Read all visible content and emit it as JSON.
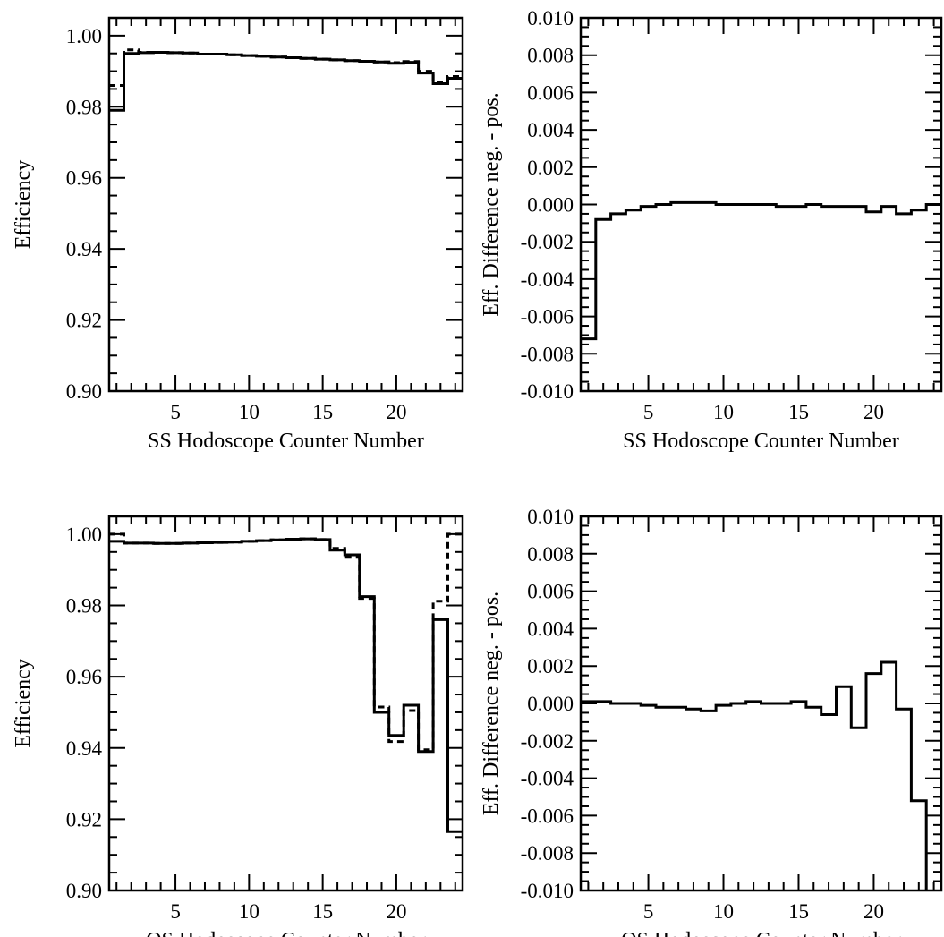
{
  "chart_data": [
    {
      "type": "line",
      "step": true,
      "xlabel": "SS Hodoscope Counter Number",
      "ylabel": "Efficiency",
      "xlim": [
        0.5,
        24.5
      ],
      "ylim": [
        0.9,
        1.005
      ],
      "x_ticks": [
        5,
        10,
        15,
        20
      ],
      "x_tick_labels": [
        "5",
        "10",
        "15",
        "20"
      ],
      "y_ticks": [
        0.9,
        0.92,
        0.94,
        0.96,
        0.98,
        1.0
      ],
      "y_tick_labels": [
        "0.90",
        "0.92",
        "0.94",
        "0.96",
        "0.98",
        "1.00"
      ],
      "x": [
        1,
        2,
        3,
        4,
        5,
        6,
        7,
        8,
        9,
        10,
        11,
        12,
        13,
        14,
        15,
        16,
        17,
        18,
        19,
        20,
        21,
        22,
        23,
        24
      ],
      "series": [
        {
          "style": "solid",
          "values": [
            0.979,
            0.995,
            0.9952,
            0.9953,
            0.9952,
            0.9951,
            0.9948,
            0.9948,
            0.9946,
            0.9944,
            0.9942,
            0.994,
            0.9938,
            0.9936,
            0.9934,
            0.9932,
            0.993,
            0.9928,
            0.9926,
            0.9922,
            0.9925,
            0.9895,
            0.9865,
            0.988
          ]
        },
        {
          "style": "dashed",
          "values": [
            0.986,
            0.996,
            0.9953,
            0.9953,
            0.9952,
            0.9951,
            0.9948,
            0.9948,
            0.9946,
            0.9944,
            0.9942,
            0.994,
            0.9938,
            0.9936,
            0.9934,
            0.9932,
            0.993,
            0.9928,
            0.9926,
            0.9924,
            0.9927,
            0.99,
            0.987,
            0.9885
          ]
        }
      ]
    },
    {
      "type": "line",
      "step": true,
      "xlabel": "SS Hodoscope Counter Number",
      "ylabel": "Eff. Difference neg. - pos.",
      "xlim": [
        0.5,
        24.5
      ],
      "ylim": [
        -0.01,
        0.01
      ],
      "x_ticks": [
        5,
        10,
        15,
        20
      ],
      "x_tick_labels": [
        "5",
        "10",
        "15",
        "20"
      ],
      "y_ticks": [
        -0.01,
        -0.008,
        -0.006,
        -0.004,
        -0.002,
        0.0,
        0.002,
        0.004,
        0.006,
        0.008,
        0.01
      ],
      "y_tick_labels": [
        "-0.010",
        "-0.008",
        "-0.006",
        "-0.004",
        "-0.002",
        "0.000",
        "0.002",
        "0.004",
        "0.006",
        "0.008",
        "0.010"
      ],
      "x": [
        1,
        2,
        3,
        4,
        5,
        6,
        7,
        8,
        9,
        10,
        11,
        12,
        13,
        14,
        15,
        16,
        17,
        18,
        19,
        20,
        21,
        22,
        23,
        24
      ],
      "series": [
        {
          "style": "solid",
          "values": [
            -0.0072,
            -0.0008,
            -0.0005,
            -0.0003,
            -0.0001,
            0.0,
            0.0001,
            0.0001,
            0.0001,
            0.0,
            0.0,
            0.0,
            0.0,
            -0.0001,
            -0.0001,
            0.0,
            -0.0001,
            -0.0001,
            -0.0001,
            -0.0004,
            -0.0001,
            -0.0005,
            -0.0003,
            0.0
          ]
        }
      ]
    },
    {
      "type": "line",
      "step": true,
      "xlabel": "OS Hodoscope Counter Number",
      "ylabel": "Efficiency",
      "xlim": [
        0.5,
        24.5
      ],
      "ylim": [
        0.9,
        1.005
      ],
      "x_ticks": [
        5,
        10,
        15,
        20
      ],
      "x_tick_labels": [
        "5",
        "10",
        "15",
        "20"
      ],
      "y_ticks": [
        0.9,
        0.92,
        0.94,
        0.96,
        0.98,
        1.0
      ],
      "y_tick_labels": [
        "0.90",
        "0.92",
        "0.94",
        "0.96",
        "0.98",
        "1.00"
      ],
      "x": [
        1,
        2,
        3,
        4,
        5,
        6,
        7,
        8,
        9,
        10,
        11,
        12,
        13,
        14,
        15,
        16,
        17,
        18,
        19,
        20,
        21,
        22,
        23,
        24
      ],
      "series": [
        {
          "style": "solid",
          "values": [
            0.998,
            0.9975,
            0.9975,
            0.9974,
            0.9974,
            0.9975,
            0.9976,
            0.9977,
            0.9978,
            0.998,
            0.9982,
            0.9984,
            0.9986,
            0.9987,
            0.9985,
            0.9955,
            0.9942,
            0.9825,
            0.95,
            0.9435,
            0.952,
            0.939,
            0.976,
            0.9165
          ]
        },
        {
          "style": "dashed",
          "values": [
            1.0,
            0.9975,
            0.9975,
            0.9974,
            0.9974,
            0.9975,
            0.9976,
            0.9977,
            0.9978,
            0.998,
            0.9982,
            0.9984,
            0.9986,
            0.9987,
            0.9985,
            0.996,
            0.9935,
            0.982,
            0.9515,
            0.9418,
            0.9505,
            0.9395,
            0.9812,
            1.0
          ]
        }
      ]
    },
    {
      "type": "line",
      "step": true,
      "xlabel": "OS Hodoscope Counter Number",
      "ylabel": "Eff. Difference neg. - pos.",
      "xlim": [
        0.5,
        24.5
      ],
      "ylim": [
        -0.01,
        0.01
      ],
      "x_ticks": [
        5,
        10,
        15,
        20
      ],
      "x_tick_labels": [
        "5",
        "10",
        "15",
        "20"
      ],
      "y_ticks": [
        -0.01,
        -0.008,
        -0.006,
        -0.004,
        -0.002,
        0.0,
        0.002,
        0.004,
        0.006,
        0.008,
        0.01
      ],
      "y_tick_labels": [
        "-0.010",
        "-0.008",
        "-0.006",
        "-0.004",
        "-0.002",
        "0.000",
        "0.002",
        "0.004",
        "0.006",
        "0.008",
        "0.010"
      ],
      "x": [
        1,
        2,
        3,
        4,
        5,
        6,
        7,
        8,
        9,
        10,
        11,
        12,
        13,
        14,
        15,
        16,
        17,
        18,
        19,
        20,
        21,
        22,
        23,
        24
      ],
      "series": [
        {
          "style": "solid",
          "values": [
            0.0001,
            0.0001,
            0.0,
            0.0,
            -0.0001,
            -0.0002,
            -0.0002,
            -0.0003,
            -0.0004,
            -0.0001,
            0.0,
            0.0001,
            0.0,
            0.0,
            0.0001,
            -0.0002,
            -0.0006,
            0.0009,
            -0.0013,
            0.0016,
            0.0022,
            -0.0003,
            -0.0052,
            -0.011
          ]
        }
      ]
    }
  ]
}
